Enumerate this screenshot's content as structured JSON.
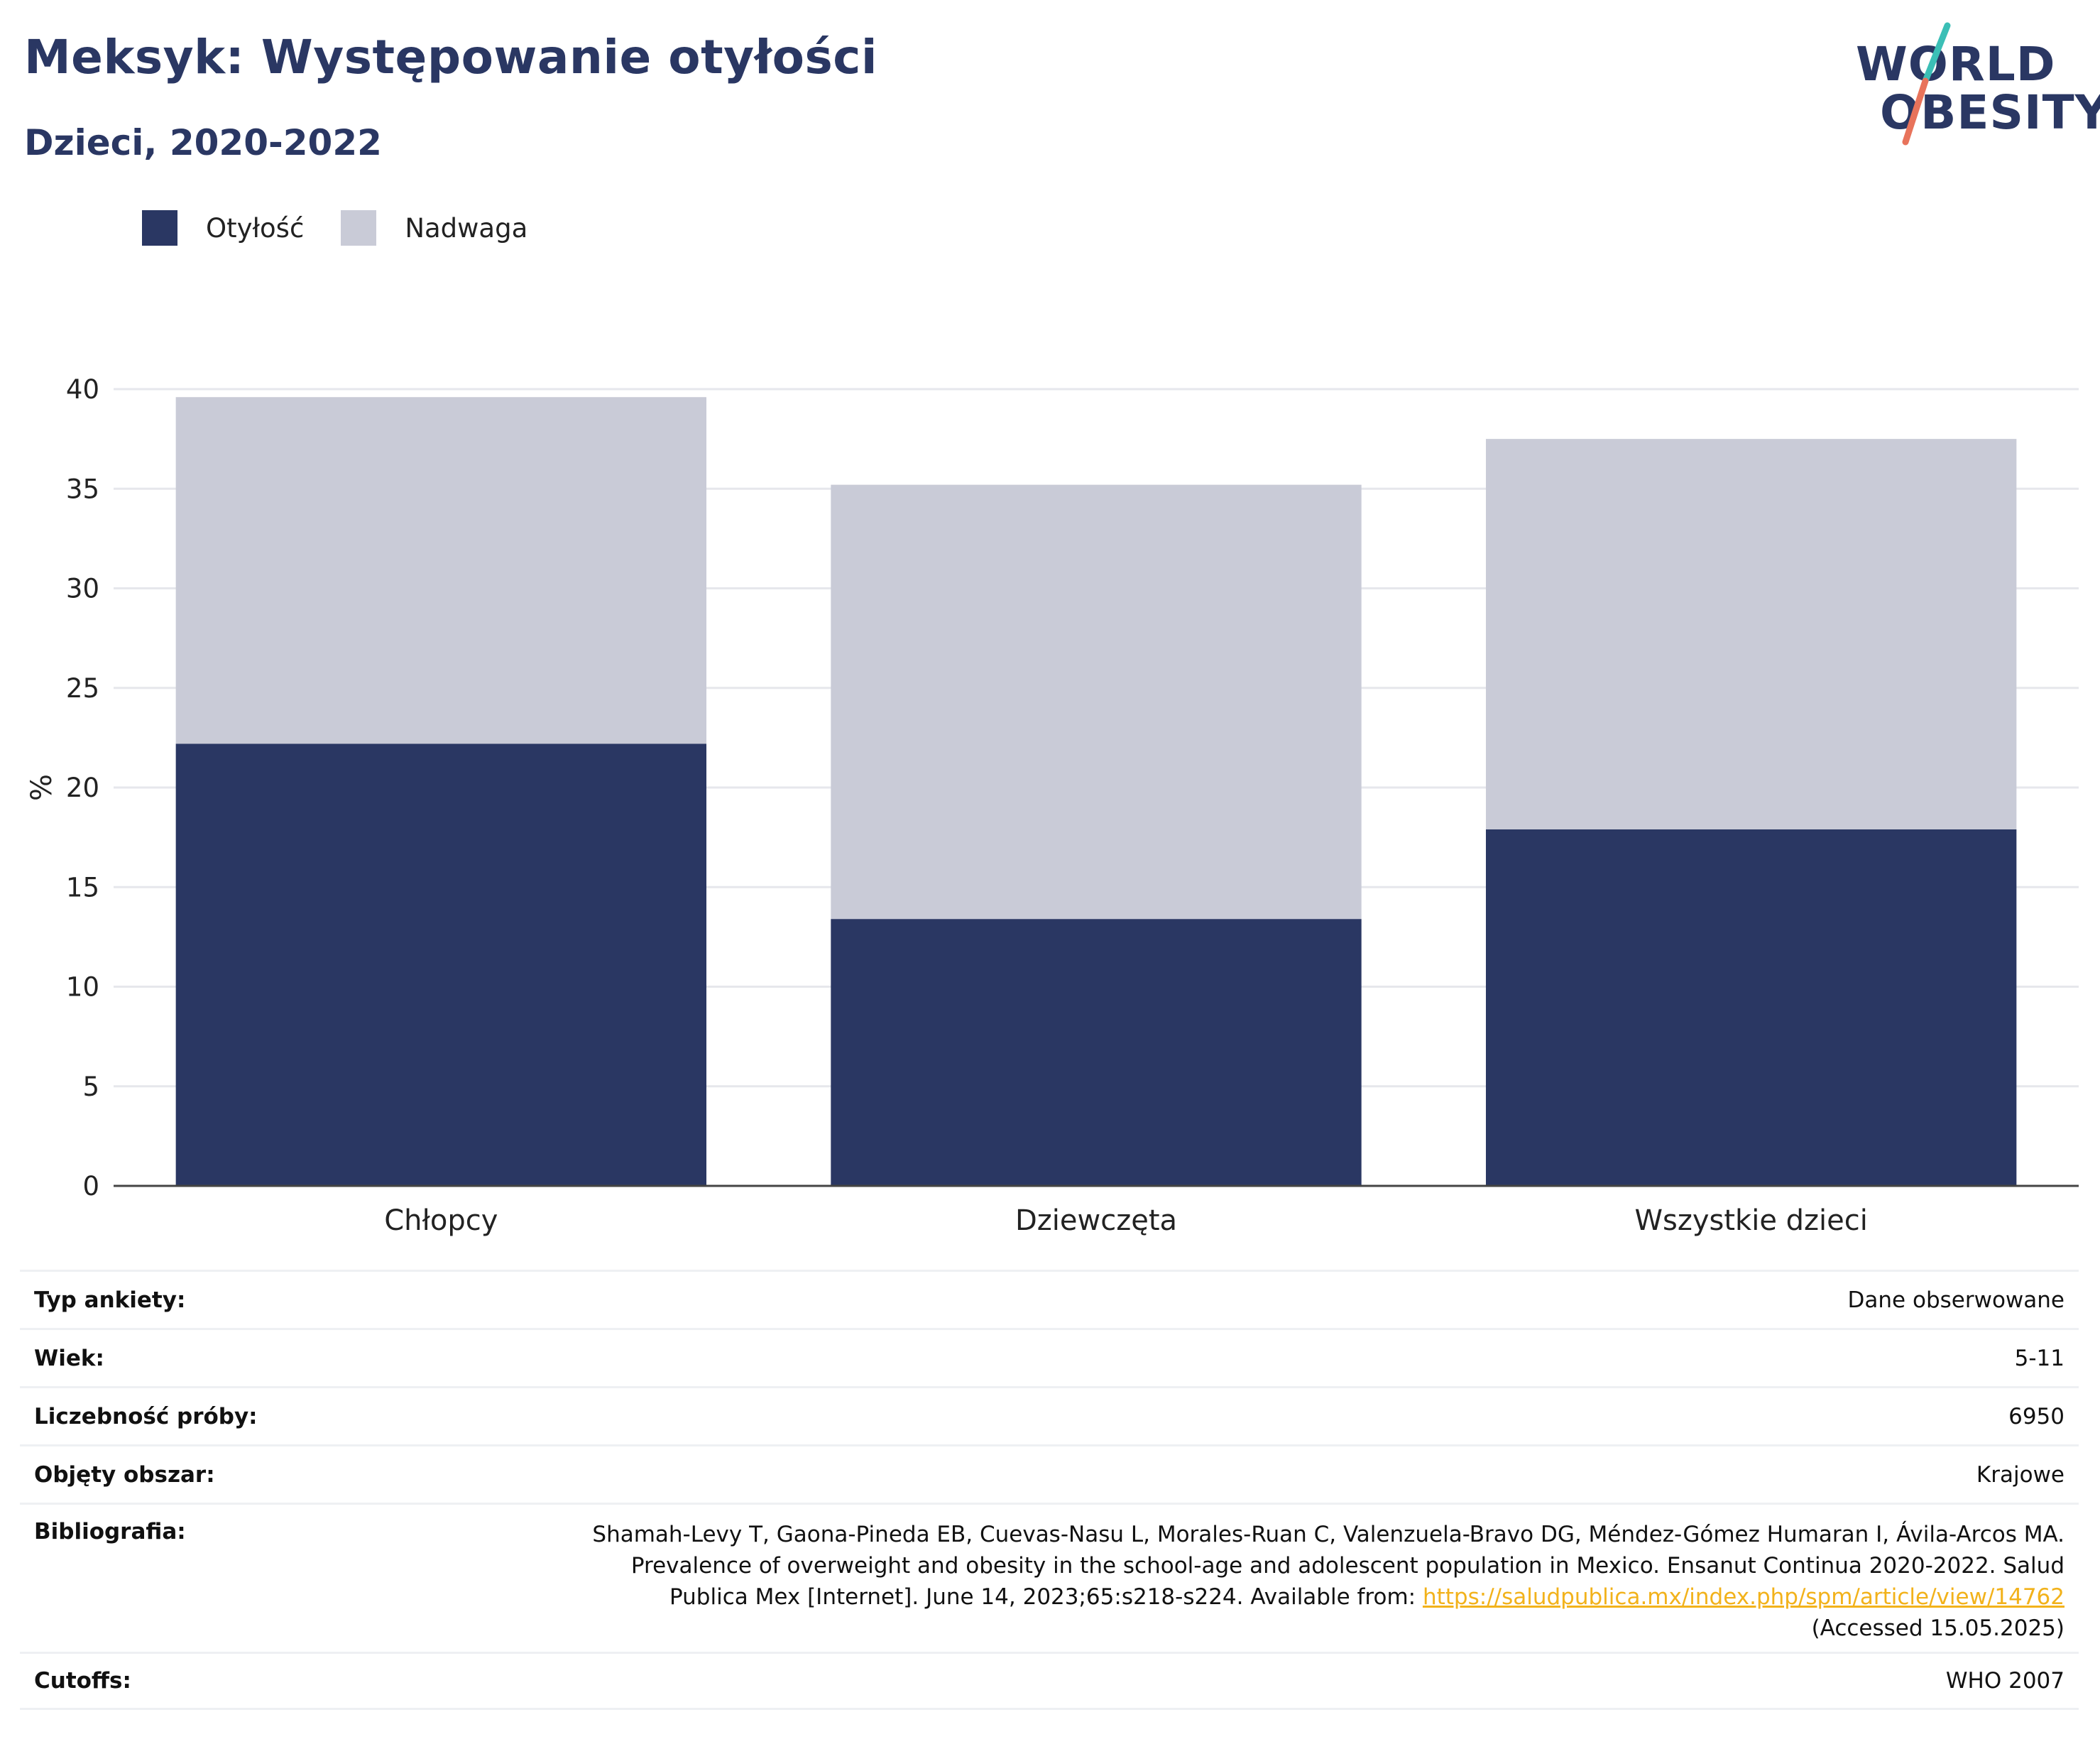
{
  "header": {
    "title": "Meksyk: Występowanie otyłości",
    "subtitle": "Dzieci, 2020-2022"
  },
  "logo": {
    "line1": "WORLD",
    "line2": "OBESITY"
  },
  "legend": {
    "items": [
      {
        "label": "Otyłość",
        "color": "#2a3763"
      },
      {
        "label": "Nadwaga",
        "color": "#c9cbd7"
      }
    ]
  },
  "chart_data": {
    "type": "bar",
    "stacked": true,
    "categories": [
      "Chłopcy",
      "Dziewczęta",
      "Wszystkie dzieci"
    ],
    "series": [
      {
        "name": "Otyłość",
        "values": [
          22.2,
          13.4,
          17.9
        ],
        "color": "#2a3763"
      },
      {
        "name": "Nadwaga",
        "values": [
          17.4,
          21.8,
          19.6
        ],
        "color": "#c9cbd7"
      }
    ],
    "ylabel": "%",
    "ylim": [
      0,
      40
    ],
    "yticks": [
      0,
      5,
      10,
      15,
      20,
      25,
      30,
      35,
      40
    ],
    "grid": true,
    "legend_position": "top-left"
  },
  "meta": {
    "survey_type": {
      "label": "Typ ankiety:",
      "value": "Dane obserwowane"
    },
    "age": {
      "label": "Wiek:",
      "value": "5-11"
    },
    "sample_size": {
      "label": "Liczebność próby:",
      "value": "6950"
    },
    "area": {
      "label": "Objęty obszar:",
      "value": "Krajowe"
    },
    "bibliography": {
      "label": "Bibliografia:",
      "text": "Shamah-Levy T, Gaona-Pineda EB, Cuevas-Nasu L, Morales-Ruan C, Valenzuela-Bravo DG, Méndez-Gómez Humaran I, Ávila-Arcos MA. Prevalence of overweight and obesity in the school-age and adolescent population in Mexico. Ensanut Continua 2020-2022. Salud Publica Mex [Internet]. June 14, 2023;65:s218-s224. Available from:",
      "link": "https://saludpublica.mx/index.php/spm/article/view/14762",
      "accessed": "(Accessed 15.05.2025)"
    },
    "cutoffs": {
      "label": "Cutoffs:",
      "value": "WHO 2007"
    }
  }
}
